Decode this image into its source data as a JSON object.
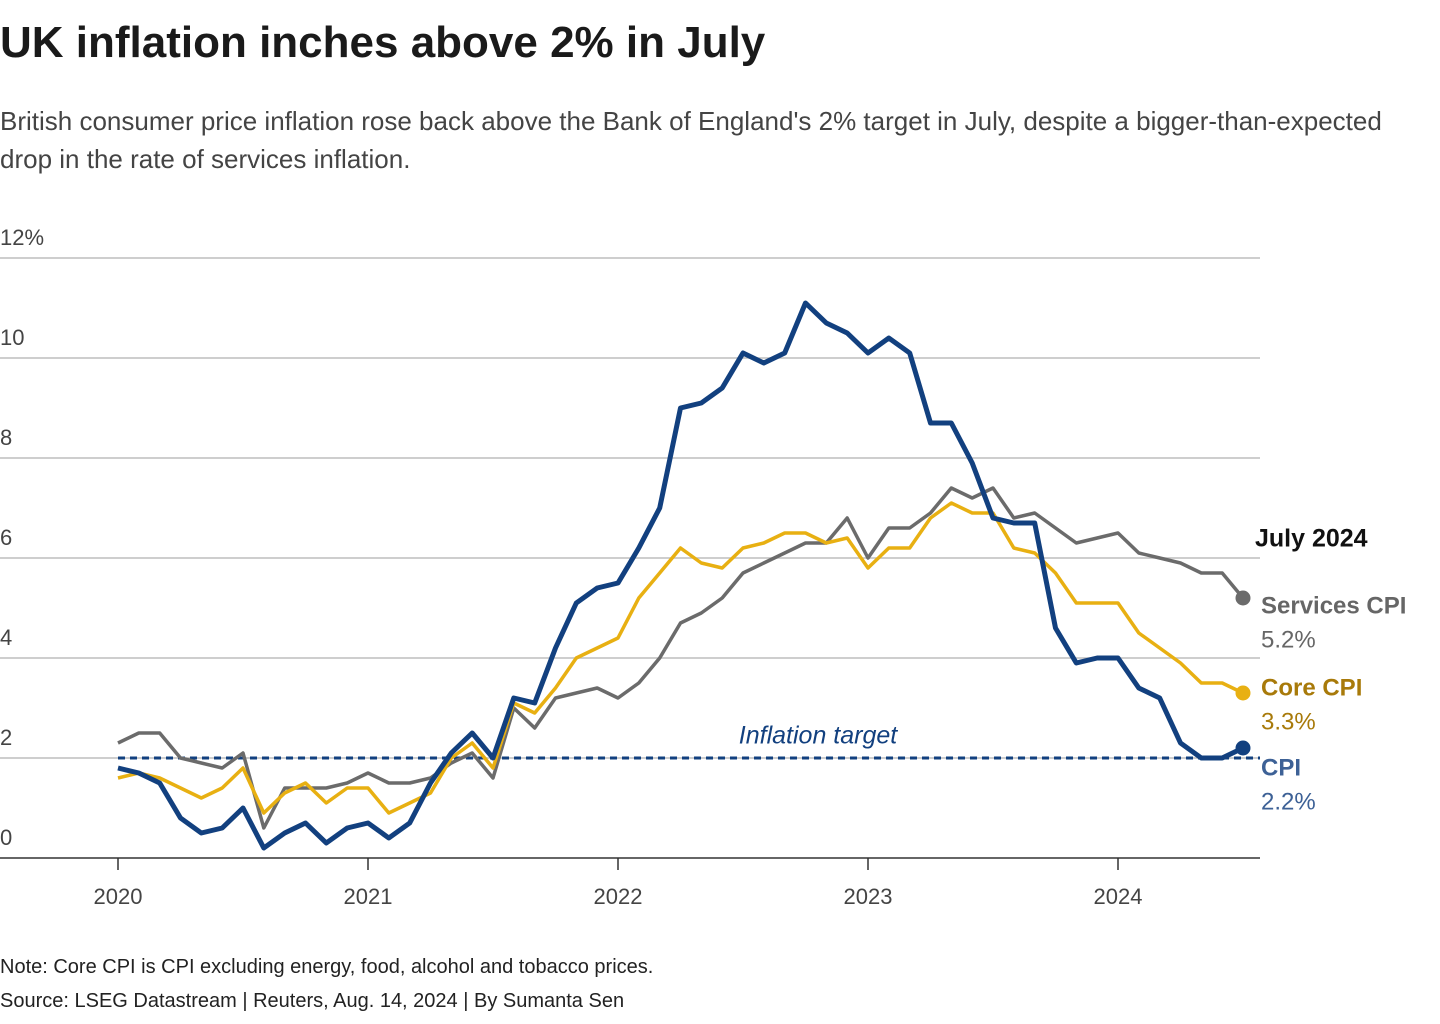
{
  "chart_data": {
    "type": "line",
    "title": "UK inflation inches above 2% in July",
    "subtitle": "British consumer price inflation rose back above the Bank of England's 2% target in July, despite a bigger-than-expected drop in the rate of services inflation.",
    "x": [
      2020.0,
      2020.083,
      2020.167,
      2020.25,
      2020.333,
      2020.417,
      2020.5,
      2020.583,
      2020.667,
      2020.75,
      2020.833,
      2020.917,
      2021.0,
      2021.083,
      2021.167,
      2021.25,
      2021.333,
      2021.417,
      2021.5,
      2021.583,
      2021.667,
      2021.75,
      2021.833,
      2021.917,
      2022.0,
      2022.083,
      2022.167,
      2022.25,
      2022.333,
      2022.417,
      2022.5,
      2022.583,
      2022.667,
      2022.75,
      2022.833,
      2022.917,
      2023.0,
      2023.083,
      2023.167,
      2023.25,
      2023.333,
      2023.417,
      2023.5,
      2023.583,
      2023.667,
      2023.75,
      2023.833,
      2023.917,
      2024.0,
      2024.083,
      2024.167,
      2024.25,
      2024.333,
      2024.417,
      2024.5
    ],
    "series": [
      {
        "name": "Services CPI",
        "color": "#6b6b6b",
        "label_color": "#666666",
        "end_value_label": "5.2%",
        "values": [
          2.3,
          2.5,
          2.5,
          2.0,
          1.9,
          1.8,
          2.1,
          0.6,
          1.4,
          1.4,
          1.4,
          1.5,
          1.7,
          1.5,
          1.5,
          1.6,
          1.9,
          2.1,
          1.6,
          3.0,
          2.6,
          3.2,
          3.3,
          3.4,
          3.2,
          3.5,
          4.0,
          4.7,
          4.9,
          5.2,
          5.7,
          5.9,
          6.1,
          6.3,
          6.3,
          6.8,
          6.0,
          6.6,
          6.6,
          6.9,
          7.4,
          7.2,
          7.4,
          6.8,
          6.9,
          6.6,
          6.3,
          6.4,
          6.5,
          6.1,
          6.0,
          5.9,
          5.7,
          5.7,
          5.2
        ]
      },
      {
        "name": "Core CPI",
        "color": "#e8b012",
        "label_color": "#a87a0a",
        "end_value_label": "3.3%",
        "values": [
          1.6,
          1.7,
          1.6,
          1.4,
          1.2,
          1.4,
          1.8,
          0.9,
          1.3,
          1.5,
          1.1,
          1.4,
          1.4,
          0.9,
          1.1,
          1.3,
          2.0,
          2.3,
          1.8,
          3.1,
          2.9,
          3.4,
          4.0,
          4.2,
          4.4,
          5.2,
          5.7,
          6.2,
          5.9,
          5.8,
          6.2,
          6.3,
          6.5,
          6.5,
          6.3,
          6.4,
          5.8,
          6.2,
          6.2,
          6.8,
          7.1,
          6.9,
          6.9,
          6.2,
          6.1,
          5.7,
          5.1,
          5.1,
          5.1,
          4.5,
          4.2,
          3.9,
          3.5,
          3.5,
          3.3
        ]
      },
      {
        "name": "CPI",
        "color": "#12407f",
        "label_color": "#3d6196",
        "end_value_label": "2.2%",
        "values": [
          1.8,
          1.7,
          1.5,
          0.8,
          0.5,
          0.6,
          1.0,
          0.2,
          0.5,
          0.7,
          0.3,
          0.6,
          0.7,
          0.4,
          0.7,
          1.5,
          2.1,
          2.5,
          2.0,
          3.2,
          3.1,
          4.2,
          5.1,
          5.4,
          5.5,
          6.2,
          7.0,
          9.0,
          9.1,
          9.4,
          10.1,
          9.9,
          10.1,
          11.1,
          10.7,
          10.5,
          10.1,
          10.4,
          10.1,
          8.7,
          8.7,
          7.9,
          6.8,
          6.7,
          6.7,
          4.6,
          3.9,
          4.0,
          4.0,
          3.4,
          3.2,
          2.3,
          2.0,
          2.0,
          2.2
        ]
      }
    ],
    "xlim": [
      2019.528,
      2024.568
    ],
    "xticks": [
      2020,
      2021,
      2022,
      2023,
      2024
    ],
    "ylim": [
      0,
      12
    ],
    "yticks": [
      0,
      2,
      4,
      6,
      8,
      {
        "value": 10,
        "label": "10"
      },
      {
        "value": 12,
        "label": "12%"
      }
    ],
    "grid": true,
    "reference_line": {
      "value": 2,
      "label": "Inflation target",
      "color": "#12407f"
    },
    "end_annotation": "July 2024",
    "note": "Note: Core CPI is CPI excluding energy, food, alcohol and tobacco prices.",
    "source": "Source: LSEG Datastream | Reuters, Aug. 14, 2024 | By Sumanta Sen"
  }
}
